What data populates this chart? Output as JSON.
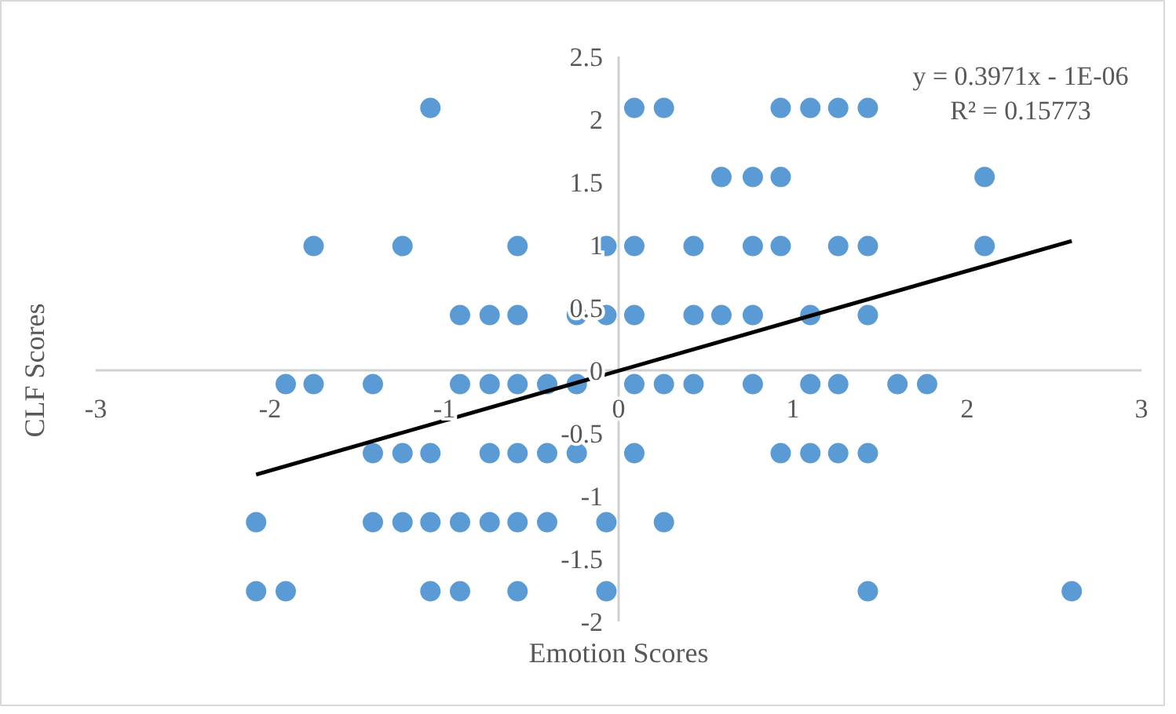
{
  "chart_data": {
    "type": "scatter",
    "xlabel": "Emotion Scores",
    "ylabel": "CLF Scores",
    "annotations": [
      "y = 0.3971x - 1E-06",
      "R² = 0.15773"
    ],
    "xlim": [
      -3,
      3
    ],
    "ylim": [
      -2,
      2.5
    ],
    "xticks": [
      -3,
      -2,
      -1,
      0,
      1,
      2,
      3
    ],
    "yticks": [
      -2,
      -1.5,
      -1,
      -0.5,
      0,
      0.5,
      1,
      1.5,
      2,
      2.5
    ],
    "grid": false,
    "marker": "circle",
    "series": [
      {
        "color": "#5b9bd5",
        "x": [
          -1.08,
          0.09,
          0.26,
          0.93,
          1.1,
          1.26,
          1.43,
          0.59,
          0.77,
          0.93,
          2.1,
          -1.75,
          -1.24,
          -0.58,
          -0.07,
          0.09,
          0.43,
          0.77,
          0.93,
          1.26,
          1.43,
          2.1,
          -0.91,
          -0.74,
          -0.58,
          -0.24,
          -0.07,
          0.09,
          0.43,
          0.59,
          0.77,
          1.1,
          1.43,
          -1.91,
          -1.75,
          -1.41,
          -0.91,
          -0.74,
          -0.58,
          -0.41,
          -0.24,
          0.09,
          0.26,
          0.43,
          0.77,
          1.1,
          1.26,
          1.6,
          1.77,
          -1.41,
          -1.24,
          -1.08,
          -0.74,
          -0.58,
          -0.41,
          -0.24,
          0.09,
          0.93,
          1.1,
          1.26,
          1.43,
          -2.08,
          -1.41,
          -1.24,
          -1.08,
          -0.91,
          -0.74,
          -0.58,
          -0.41,
          -0.07,
          0.26,
          -2.08,
          -1.91,
          -1.08,
          -0.91,
          -0.58,
          -0.07,
          1.43,
          2.6
        ],
        "values": [
          2.09,
          2.09,
          2.09,
          2.09,
          2.09,
          2.09,
          2.09,
          1.54,
          1.54,
          1.54,
          1.54,
          0.99,
          0.99,
          0.99,
          0.99,
          0.99,
          0.99,
          0.99,
          0.99,
          0.99,
          0.99,
          0.99,
          0.44,
          0.44,
          0.44,
          0.44,
          0.44,
          0.44,
          0.44,
          0.44,
          0.44,
          0.44,
          0.44,
          -0.11,
          -0.11,
          -0.11,
          -0.11,
          -0.11,
          -0.11,
          -0.11,
          -0.11,
          -0.11,
          -0.11,
          -0.11,
          -0.11,
          -0.11,
          -0.11,
          -0.11,
          -0.11,
          -0.66,
          -0.66,
          -0.66,
          -0.66,
          -0.66,
          -0.66,
          -0.66,
          -0.66,
          -0.66,
          -0.66,
          -0.66,
          -0.66,
          -1.21,
          -1.21,
          -1.21,
          -1.21,
          -1.21,
          -1.21,
          -1.21,
          -1.21,
          -1.21,
          -1.21,
          -1.76,
          -1.76,
          -1.76,
          -1.76,
          -1.76,
          -1.76,
          -1.76,
          -1.76
        ]
      },
      {
        "type": "line",
        "color": "#000000",
        "marker": "none",
        "x": [
          -2.08,
          2.6
        ],
        "values": [
          -0.83,
          1.03
        ]
      }
    ]
  }
}
